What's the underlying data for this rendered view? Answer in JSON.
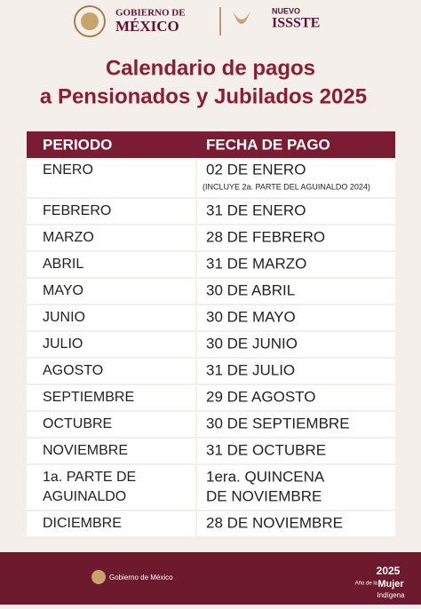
{
  "header": {
    "gov_top": "GOBIERNO DE",
    "gov_name": "MÉXICO",
    "issste_top": "NUEVO",
    "issste_name": "ISSSTE"
  },
  "title": [
    "Calendario de pagos",
    "a Pensionados y Jubilados 2025"
  ],
  "table": {
    "columns": [
      "PERIODO",
      "FECHA DE PAGO"
    ],
    "rows": [
      {
        "period": [
          "ENERO"
        ],
        "date": [
          "02 DE ENERO"
        ],
        "note": "(INCLUYE 2a. PARTE DEL AGUINALDO 2024)"
      },
      {
        "period": [
          "FEBRERO"
        ],
        "date": [
          "31 DE ENERO"
        ]
      },
      {
        "period": [
          "MARZO"
        ],
        "date": [
          "28 DE FEBRERO"
        ]
      },
      {
        "period": [
          "ABRIL"
        ],
        "date": [
          "31 DE MARZO"
        ]
      },
      {
        "period": [
          "MAYO"
        ],
        "date": [
          "30 DE ABRIL"
        ]
      },
      {
        "period": [
          "JUNIO"
        ],
        "date": [
          "30 DE MAYO"
        ]
      },
      {
        "period": [
          "JULIO"
        ],
        "date": [
          "30 DE JUNIO"
        ]
      },
      {
        "period": [
          "AGOSTO"
        ],
        "date": [
          "31 DE JULIO"
        ]
      },
      {
        "period": [
          "SEPTIEMBRE"
        ],
        "date": [
          "29 DE AGOSTO"
        ]
      },
      {
        "period": [
          "OCTUBRE"
        ],
        "date": [
          "30 DE SEPTIEMBRE"
        ]
      },
      {
        "period": [
          "NOVIEMBRE"
        ],
        "date": [
          "31 DE OCTUBRE"
        ]
      },
      {
        "period": [
          "1a. PARTE DE",
          "AGUINALDO"
        ],
        "date": [
          "1era. QUINCENA",
          "DE NOVIEMBRE"
        ]
      },
      {
        "period": [
          "DICIEMBRE"
        ],
        "date": [
          "28 DE NOVIEMBRE"
        ]
      }
    ]
  },
  "footer": {
    "gov": "Gobierno de México",
    "year": "2025",
    "motto": [
      "Año de la",
      "Mujer",
      "Indígena"
    ]
  }
}
